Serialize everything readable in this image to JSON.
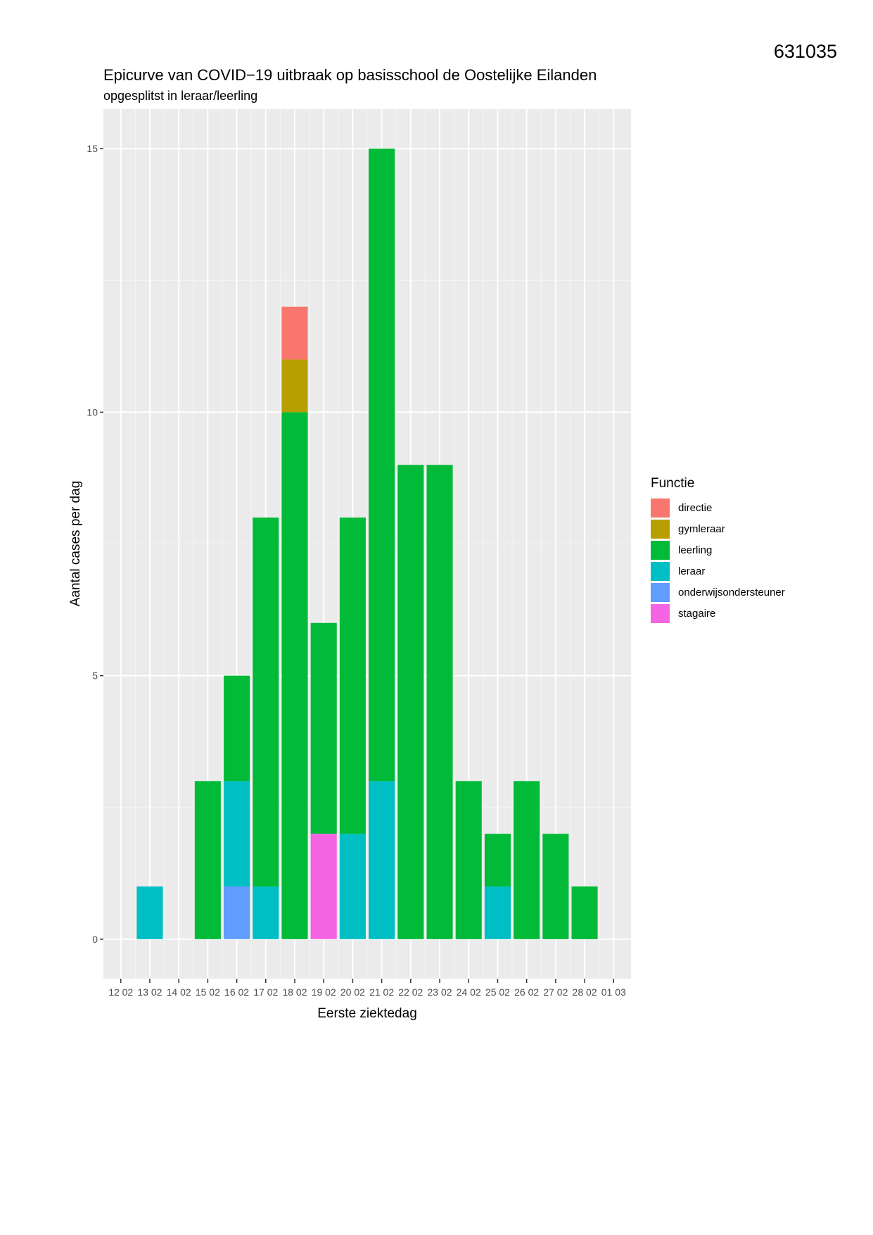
{
  "doc_id": "631035",
  "chart_data": {
    "type": "bar",
    "stacked": true,
    "title": "Epicurve van COVID−19 uitbraak op basisschool de Oostelijke Eilanden",
    "subtitle": "opgesplitst in leraar/leerling",
    "xlabel": "Eerste ziektedag",
    "ylabel": "Aantal cases per dag",
    "ylim": [
      -0.75,
      15.75
    ],
    "yticks": [
      0,
      5,
      10,
      15
    ],
    "ytick_labels": [
      "0",
      "5",
      "10",
      "15"
    ],
    "grid": true,
    "legend_position": "right",
    "legend_title": "Functie",
    "categories": [
      "13 02",
      "14 02",
      "15 02",
      "16 02",
      "17 02",
      "18 02",
      "19 02",
      "20 02",
      "21 02",
      "22 02",
      "23 02",
      "24 02",
      "25 02",
      "26 02",
      "27 02",
      "28 02"
    ],
    "xtick_labels": [
      "12 02",
      "13 02",
      "14 02",
      "15 02",
      "16 02",
      "17 02",
      "18 02",
      "19 02",
      "20 02",
      "21 02",
      "22 02",
      "23 02",
      "24 02",
      "25 02",
      "26 02",
      "27 02",
      "28 02",
      "01 03"
    ],
    "series": [
      {
        "name": "stagaire",
        "color": "#F564E3",
        "values": [
          0,
          0,
          0,
          0,
          0,
          0,
          2,
          0,
          0,
          0,
          0,
          0,
          0,
          0,
          0,
          0
        ]
      },
      {
        "name": "onderwijsondersteuner",
        "color": "#619CFF",
        "values": [
          0,
          0,
          0,
          1,
          0,
          0,
          0,
          0,
          0,
          0,
          0,
          0,
          0,
          0,
          0,
          0
        ]
      },
      {
        "name": "leraar",
        "color": "#00BFC4",
        "values": [
          1,
          0,
          0,
          2,
          1,
          0,
          0,
          2,
          3,
          0,
          0,
          0,
          1,
          0,
          0,
          0
        ]
      },
      {
        "name": "leerling",
        "color": "#00BA38",
        "values": [
          0,
          0,
          3,
          2,
          7,
          10,
          4,
          6,
          12,
          9,
          9,
          3,
          1,
          3,
          2,
          1
        ]
      },
      {
        "name": "gymleraar",
        "color": "#B79F00",
        "values": [
          0,
          0,
          0,
          0,
          0,
          1,
          0,
          0,
          0,
          0,
          0,
          0,
          0,
          0,
          0,
          0
        ]
      },
      {
        "name": "directie",
        "color": "#F8766D",
        "values": [
          0,
          0,
          0,
          0,
          0,
          1,
          0,
          0,
          0,
          0,
          0,
          0,
          0,
          0,
          0,
          0
        ]
      }
    ],
    "legend_order": [
      "directie",
      "gymleraar",
      "leerling",
      "leraar",
      "onderwijsondersteuner",
      "stagaire"
    ]
  }
}
